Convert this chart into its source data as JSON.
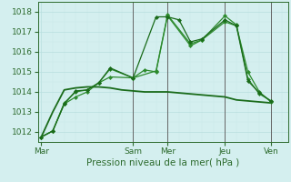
{
  "background_color": "#d4efef",
  "grid_color_major": "#b8dede",
  "grid_color_minor": "#c8eaea",
  "xlabel": "Pression niveau de la mer( hPa )",
  "ylim": [
    1011.5,
    1018.5
  ],
  "yticks": [
    1012,
    1013,
    1014,
    1015,
    1016,
    1017,
    1018
  ],
  "xtick_labels": [
    "Mar",
    "Sam",
    "Mer",
    "Jeu",
    "Ven"
  ],
  "xtick_positions": [
    0,
    8,
    11,
    16,
    20
  ],
  "xlim": [
    -0.3,
    21.5
  ],
  "series": [
    {
      "x": [
        0,
        1,
        2,
        3,
        4,
        5,
        6,
        8,
        9,
        10,
        11,
        13,
        14,
        16,
        17,
        18,
        19,
        20
      ],
      "y": [
        1011.75,
        1012.05,
        1013.4,
        1013.75,
        1014.0,
        1014.45,
        1014.75,
        1014.7,
        1015.1,
        1015.0,
        1017.8,
        1016.3,
        1016.6,
        1017.5,
        1017.3,
        1015.0,
        1014.0,
        1013.5
      ],
      "color": "#2d8b2d",
      "lw": 0.9,
      "marker": "D",
      "ms": 2.0
    },
    {
      "x": [
        0,
        1,
        2,
        3,
        4,
        5,
        6,
        8,
        10,
        11,
        13,
        14,
        16,
        17,
        18,
        19,
        20
      ],
      "y": [
        1011.75,
        1012.05,
        1013.45,
        1014.0,
        1014.1,
        1014.45,
        1015.15,
        1014.7,
        1015.05,
        1017.85,
        1016.4,
        1016.6,
        1017.8,
        1017.35,
        1014.65,
        1013.9,
        1013.55
      ],
      "color": "#2d8b2d",
      "lw": 0.9,
      "marker": "D",
      "ms": 2.0
    },
    {
      "x": [
        0,
        1,
        2,
        3,
        4,
        5,
        6,
        8,
        10,
        11,
        12,
        13,
        14,
        16,
        17,
        18,
        19,
        20
      ],
      "y": [
        1011.75,
        1012.05,
        1013.4,
        1014.05,
        1014.1,
        1014.45,
        1015.2,
        1014.7,
        1017.75,
        1017.75,
        1017.6,
        1016.5,
        1016.65,
        1017.6,
        1017.3,
        1014.55,
        1013.95,
        1013.55
      ],
      "color": "#1a6b1a",
      "lw": 0.9,
      "marker": "D",
      "ms": 2.0
    },
    {
      "x": [
        0,
        1,
        2,
        3,
        4,
        5,
        6,
        7,
        8,
        9,
        10,
        11,
        12,
        13,
        14,
        15,
        16,
        17,
        18,
        19,
        20
      ],
      "y": [
        1011.75,
        1013.0,
        1014.1,
        1014.2,
        1014.25,
        1014.25,
        1014.2,
        1014.1,
        1014.05,
        1014.0,
        1014.0,
        1014.0,
        1013.95,
        1013.9,
        1013.85,
        1013.8,
        1013.75,
        1013.6,
        1013.55,
        1013.5,
        1013.45
      ],
      "color": "#1a6b1a",
      "lw": 1.3,
      "marker": null,
      "ms": 0
    }
  ],
  "vlines": [
    8,
    11,
    16,
    20
  ],
  "vline_color": "#666666",
  "vline_lw": 0.7,
  "tick_color": "#2d6b2d",
  "tick_fontsize": 6.5,
  "xlabel_fontsize": 7.5
}
